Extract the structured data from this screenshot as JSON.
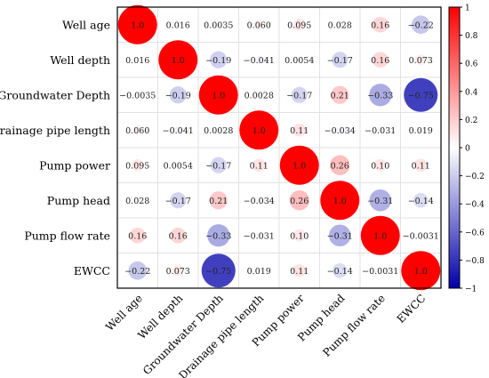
{
  "chart_data": {
    "type": "heatmap",
    "variables": [
      "Well age",
      "Well depth",
      "Groundwater Depth",
      "Drainage pipe length",
      "Pump power",
      "Pump head",
      "Pump flow rate",
      "EWCC"
    ],
    "matrix": [
      [
        1.0,
        0.016,
        0.0035,
        0.06,
        0.095,
        0.028,
        0.16,
        -0.22
      ],
      [
        0.016,
        1.0,
        -0.19,
        -0.041,
        0.0054,
        -0.17,
        0.16,
        0.073
      ],
      [
        -0.0035,
        -0.19,
        1.0,
        0.0028,
        -0.17,
        0.21,
        -0.33,
        -0.75
      ],
      [
        0.06,
        -0.041,
        0.0028,
        1.0,
        0.11,
        -0.034,
        -0.031,
        0.019
      ],
      [
        0.095,
        0.0054,
        -0.17,
        0.11,
        1.0,
        0.26,
        0.1,
        0.11
      ],
      [
        0.028,
        -0.17,
        0.21,
        -0.034,
        0.26,
        1.0,
        -0.31,
        -0.14
      ],
      [
        0.16,
        0.16,
        -0.33,
        -0.031,
        0.1,
        -0.31,
        1.0,
        -0.0031
      ],
      [
        -0.22,
        0.073,
        -0.75,
        0.019,
        0.11,
        -0.14,
        -0.0031,
        1.0
      ]
    ],
    "cell_labels": [
      [
        "1.0",
        "0.016",
        "0.0035",
        "0.060",
        "0.095",
        "0.028",
        "0.16",
        "-0.22"
      ],
      [
        "0.016",
        "1.0",
        "-0.19",
        "-0.041",
        "0.0054",
        "-0.17",
        "0.16",
        "0.073"
      ],
      [
        "-0.0035",
        "-0.19",
        "1.0",
        "0.0028",
        "-0.17",
        "0.21",
        "-0.33",
        "-0.75"
      ],
      [
        "0.060",
        "-0.041",
        "0.0028",
        "1.0",
        "0.11",
        "-0.034",
        "-0.031",
        "0.019"
      ],
      [
        "0.095",
        "0.0054",
        "-0.17",
        "0.11",
        "1.0",
        "0.26",
        "0.10",
        "0.11"
      ],
      [
        "0.028",
        "-0.17",
        "0.21",
        "-0.034",
        "0.26",
        "1.0",
        "-0.31",
        "-0.14"
      ],
      [
        "0.16",
        "0.16",
        "-0.33",
        "-0.031",
        "0.10",
        "-0.31",
        "1.0",
        "-0.0031"
      ],
      [
        "-0.22",
        "0.073",
        "-0.75",
        "0.019",
        "0.11",
        "-0.14",
        "-0.0031",
        "1.0"
      ]
    ],
    "colorbar": {
      "range": [
        -1,
        1
      ],
      "ticks": [
        1,
        0.8,
        0.6,
        0.4,
        0.2,
        0,
        -0.2,
        -0.4,
        -0.6,
        -0.8,
        -1
      ],
      "tick_labels": [
        "1",
        "0.8",
        "0.6",
        "0.4",
        "0.2",
        "0",
        "-0.2",
        "-0.4",
        "-0.6",
        "-0.8",
        "-1"
      ],
      "colors": {
        "positive": "#ff0000",
        "neutral": "#ffffff",
        "negative": "#0000aa"
      }
    },
    "marker": "circle",
    "grid": true,
    "title": "",
    "xlabel": "",
    "ylabel": ""
  }
}
